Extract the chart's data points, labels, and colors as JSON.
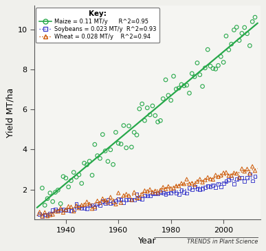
{
  "title": "",
  "xlabel": "Year",
  "ylabel": "Yield MT/ha",
  "xlim": [
    1928,
    2014
  ],
  "ylim": [
    0.5,
    11.2
  ],
  "yticks": [
    2,
    4,
    6,
    8,
    10
  ],
  "xticks": [
    1940,
    1960,
    1980,
    2000
  ],
  "plot_bg": "#f5f5f2",
  "fig_bg": "#f0f0ec",
  "maize_color": "#27a84a",
  "soybean_color": "#4444cc",
  "wheat_color": "#cc5500",
  "watermark": "TRENDS in Plant Science",
  "legend_title": "Key:",
  "maize_label": "Maize = 0.11 MT/y",
  "soybean_label": "Soybeans = 0.023 MT/y",
  "wheat_label": "Wheat = 0.028 MT/y",
  "maize_r2_label": "R^2=0.95",
  "soybean_r2_label": "R^2=0.93",
  "wheat_r2_label": "R^2=0.94",
  "maize_intercept": 1.2,
  "maize_slope": 0.11,
  "soy_intercept": 0.72,
  "soy_slope": 0.023,
  "wheat_intercept": 0.72,
  "wheat_slope": 0.028,
  "start_year": 1930
}
